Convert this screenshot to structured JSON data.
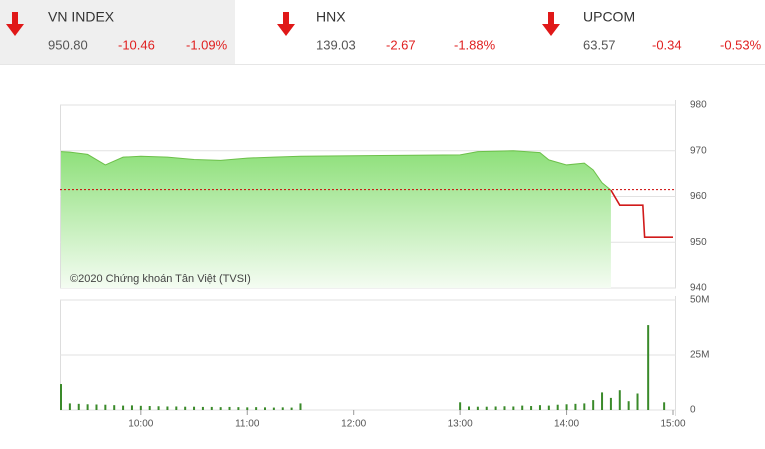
{
  "indices": [
    {
      "name": "VN INDEX",
      "value": "950.80",
      "change": "-10.46",
      "percent": "-1.09%"
    },
    {
      "name": "HNX",
      "value": "139.03",
      "change": "-2.67",
      "percent": "-1.88%"
    },
    {
      "name": "UPCOM",
      "value": "63.57",
      "change": "-0.34",
      "percent": "-0.53%"
    }
  ],
  "chart_data": [
    {
      "type": "area",
      "annotation": "©2020 Chứng khoán Tân Việt (TVSI)",
      "reference": 961.5,
      "xlim": [
        "09:15",
        "15:00"
      ],
      "ylim": [
        940,
        980
      ],
      "yticks": [
        940,
        950,
        960,
        970,
        980
      ],
      "grid": true,
      "series": [
        {
          "color": "#6cc04a",
          "x": [
            "09:15",
            "09:20",
            "09:30",
            "09:40",
            "09:50",
            "10:00",
            "10:15",
            "10:30",
            "10:45",
            "11:00",
            "11:15",
            "11:30",
            "13:00",
            "13:10",
            "13:30",
            "13:45",
            "13:50",
            "14:00",
            "14:10",
            "14:15",
            "14:20",
            "14:25"
          ],
          "values": [
            969.8,
            969.7,
            969.2,
            966.9,
            968.6,
            968.8,
            968.6,
            968.1,
            967.9,
            968.4,
            968.6,
            968.8,
            969.1,
            969.8,
            970.0,
            969.6,
            968.0,
            966.9,
            967.3,
            965.8,
            963.0,
            961.4
          ]
        },
        {
          "color": "#d11a1a",
          "x": [
            "14:25",
            "14:30",
            "14:43",
            "14:44",
            "15:00"
          ],
          "values": [
            961.4,
            958.1,
            958.1,
            951.1,
            951.1
          ]
        }
      ]
    },
    {
      "type": "bar",
      "color": "#3a8a2a",
      "xlim": [
        "09:15",
        "15:00"
      ],
      "xticks": [
        "10:00",
        "11:00",
        "12:00",
        "13:00",
        "14:00",
        "15:00"
      ],
      "ylim": [
        0,
        50
      ],
      "yticks": [
        0,
        {
          "value": 25,
          "label": "25M"
        },
        {
          "value": 50,
          "label": "50M"
        }
      ],
      "grid": true,
      "x": [
        "09:15",
        "09:20",
        "09:25",
        "09:30",
        "09:35",
        "09:40",
        "09:45",
        "09:50",
        "09:55",
        "10:00",
        "10:05",
        "10:10",
        "10:15",
        "10:20",
        "10:25",
        "10:30",
        "10:35",
        "10:40",
        "10:45",
        "10:50",
        "10:55",
        "11:00",
        "11:05",
        "11:10",
        "11:15",
        "11:20",
        "11:25",
        "11:30",
        "13:00",
        "13:05",
        "13:10",
        "13:15",
        "13:20",
        "13:25",
        "13:30",
        "13:35",
        "13:40",
        "13:45",
        "13:50",
        "13:55",
        "14:00",
        "14:05",
        "14:10",
        "14:15",
        "14:20",
        "14:25",
        "14:30",
        "14:35",
        "14:40",
        "14:46",
        "14:55"
      ],
      "values": [
        11.8,
        3.0,
        2.8,
        2.6,
        2.5,
        2.4,
        2.2,
        2.0,
        2.1,
        1.9,
        1.8,
        1.7,
        1.6,
        1.6,
        1.5,
        1.5,
        1.4,
        1.4,
        1.3,
        1.4,
        1.3,
        1.2,
        1.3,
        1.2,
        1.1,
        1.2,
        1.1,
        3.0,
        3.5,
        1.6,
        1.5,
        1.5,
        1.6,
        1.7,
        1.6,
        2.0,
        1.8,
        2.2,
        2.0,
        2.4,
        2.6,
        2.8,
        3.0,
        4.5,
        8.0,
        5.5,
        9.0,
        4.0,
        7.5,
        38.6,
        3.5
      ]
    }
  ]
}
